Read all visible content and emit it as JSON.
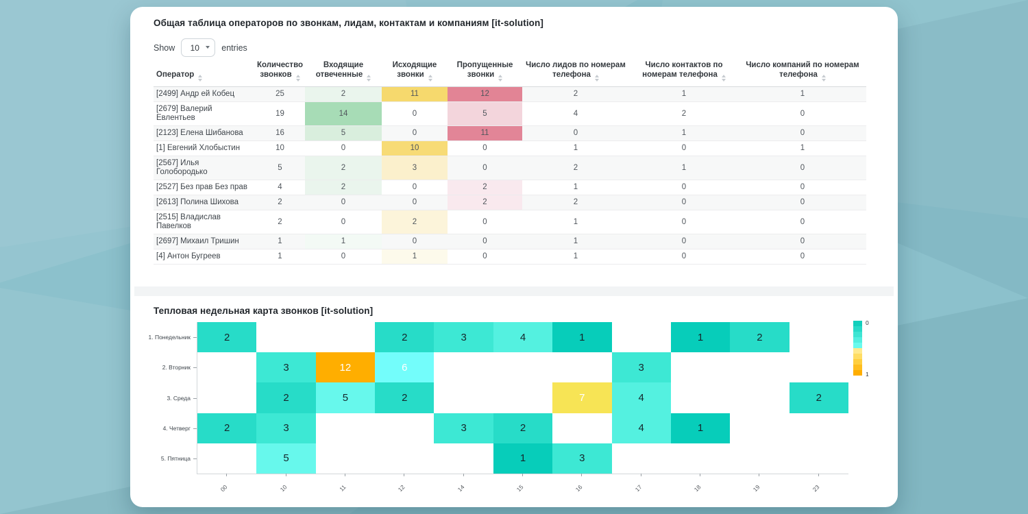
{
  "table_card": {
    "title": "Общая таблица операторов по звонкам, лидам, контактам и компаниям [it-solution]",
    "show_label": "Show",
    "page_size": "10",
    "entries_label": "entries",
    "columns": [
      "Оператор",
      "Количество звонков",
      "Входящие отвеченные",
      "Исходящие звонки",
      "Пропущенные звонки",
      "Число лидов по номерам телефона",
      "Число контактов по номерам телефона",
      "Число компаний по номерам телефона"
    ],
    "rows": [
      {
        "name": "[2499] Андр ей Кобец",
        "cells": [
          {
            "v": "25"
          },
          {
            "v": "2",
            "bg": "#eaf5ed"
          },
          {
            "v": "11",
            "bg": "#f6d96d"
          },
          {
            "v": "12",
            "bg": "#e28495"
          },
          {
            "v": "2"
          },
          {
            "v": "1"
          },
          {
            "v": "1"
          }
        ]
      },
      {
        "name": "[2679] Валерий Евлентьев",
        "cells": [
          {
            "v": "19"
          },
          {
            "v": "14",
            "bg": "#a7dcb6"
          },
          {
            "v": "0"
          },
          {
            "v": "5",
            "bg": "#f3d5dc"
          },
          {
            "v": "4"
          },
          {
            "v": "2"
          },
          {
            "v": "0"
          }
        ]
      },
      {
        "name": "[2123] Елена Шибанова",
        "cells": [
          {
            "v": "16"
          },
          {
            "v": "5",
            "bg": "#d9eedd"
          },
          {
            "v": "0"
          },
          {
            "v": "11",
            "bg": "#e28597"
          },
          {
            "v": "0"
          },
          {
            "v": "1"
          },
          {
            "v": "0"
          }
        ]
      },
      {
        "name": "[1] Евгений Хлобыстин",
        "cells": [
          {
            "v": "10"
          },
          {
            "v": "0"
          },
          {
            "v": "10",
            "bg": "#f7db76"
          },
          {
            "v": "0"
          },
          {
            "v": "1"
          },
          {
            "v": "0"
          },
          {
            "v": "1"
          }
        ]
      },
      {
        "name": "[2567] Илья Голобородько",
        "cells": [
          {
            "v": "5"
          },
          {
            "v": "2",
            "bg": "#eaf5ed"
          },
          {
            "v": "3",
            "bg": "#fbf0cc"
          },
          {
            "v": "0"
          },
          {
            "v": "2"
          },
          {
            "v": "1"
          },
          {
            "v": "0"
          }
        ]
      },
      {
        "name": "[2527] Без прав Без прав",
        "cells": [
          {
            "v": "4"
          },
          {
            "v": "2",
            "bg": "#eaf5ed"
          },
          {
            "v": "0"
          },
          {
            "v": "2",
            "bg": "#f9e9ee"
          },
          {
            "v": "1"
          },
          {
            "v": "0"
          },
          {
            "v": "0"
          }
        ]
      },
      {
        "name": "[2613] Полина Шихова",
        "cells": [
          {
            "v": "2"
          },
          {
            "v": "0"
          },
          {
            "v": "0"
          },
          {
            "v": "2",
            "bg": "#f9e9ee"
          },
          {
            "v": "2"
          },
          {
            "v": "0"
          },
          {
            "v": "0"
          }
        ]
      },
      {
        "name": "[2515] Владислав Павелков",
        "cells": [
          {
            "v": "2"
          },
          {
            "v": "0"
          },
          {
            "v": "2",
            "bg": "#fcf4da"
          },
          {
            "v": "0"
          },
          {
            "v": "1"
          },
          {
            "v": "0"
          },
          {
            "v": "0"
          }
        ]
      },
      {
        "name": "[2697] Михаил Тришин",
        "cells": [
          {
            "v": "1"
          },
          {
            "v": "1",
            "bg": "#f3faf5"
          },
          {
            "v": "0"
          },
          {
            "v": "0"
          },
          {
            "v": "1"
          },
          {
            "v": "0"
          },
          {
            "v": "0"
          }
        ]
      },
      {
        "name": "[4] Антон Бугреев",
        "cells": [
          {
            "v": "1"
          },
          {
            "v": "0"
          },
          {
            "v": "1",
            "bg": "#fdfaeb"
          },
          {
            "v": "0"
          },
          {
            "v": "1"
          },
          {
            "v": "0"
          },
          {
            "v": "0"
          }
        ]
      }
    ]
  },
  "heatmap_card": {
    "title": "Тепловая недельная карта звонков [it-solution]",
    "value_colors": {
      "1": {
        "bg": "#07cdba",
        "fg": "#15262b"
      },
      "2": {
        "bg": "#27dcc8",
        "fg": "#15262b"
      },
      "3": {
        "bg": "#3de8d4",
        "fg": "#15262b"
      },
      "4": {
        "bg": "#54f1e0",
        "fg": "#15262b"
      },
      "5": {
        "bg": "#67f8ec",
        "fg": "#15262b"
      },
      "6": {
        "bg": "#73fdfb",
        "fg": "#ffffff"
      },
      "7": {
        "bg": "#f7e455",
        "fg": "#ffffff"
      },
      "12": {
        "bg": "#ffae00",
        "fg": "#ffffff"
      }
    },
    "legend": {
      "top_label": "0",
      "bottom_label": "1",
      "colors": [
        "#12cfbc",
        "#28dac8",
        "#3ee5d3",
        "#53efe0",
        "#69faee",
        "#ffe98e",
        "#ffdd64",
        "#ffcf3f",
        "#ffbe1f",
        "#ffae00"
      ]
    }
  },
  "chart_data": {
    "type": "heatmap",
    "title": "Тепловая недельная карта звонков [it-solution]",
    "x_labels": [
      "00",
      "10",
      "11",
      "12",
      "14",
      "15",
      "16",
      "17",
      "18",
      "19",
      "23"
    ],
    "y_labels": [
      "1. Понедельник",
      "2. Вторник",
      "3. Среда",
      "4. Четверг",
      "5. Пятница"
    ],
    "matrix": [
      [
        2,
        null,
        null,
        2,
        3,
        4,
        1,
        null,
        1,
        2,
        null
      ],
      [
        null,
        3,
        12,
        6,
        null,
        null,
        null,
        3,
        null,
        null,
        null
      ],
      [
        null,
        2,
        5,
        2,
        null,
        null,
        7,
        4,
        null,
        null,
        2
      ],
      [
        2,
        3,
        null,
        null,
        3,
        2,
        null,
        4,
        1,
        null,
        null
      ],
      [
        null,
        5,
        null,
        null,
        null,
        1,
        3,
        null,
        null,
        null,
        null
      ]
    ],
    "colorbar": {
      "min_label": "0",
      "max_label": "1",
      "low_color": "#12cfbc",
      "mid_color": "#73fdfb",
      "high_color": "#ffae00",
      "position": "right"
    },
    "grid": false
  }
}
